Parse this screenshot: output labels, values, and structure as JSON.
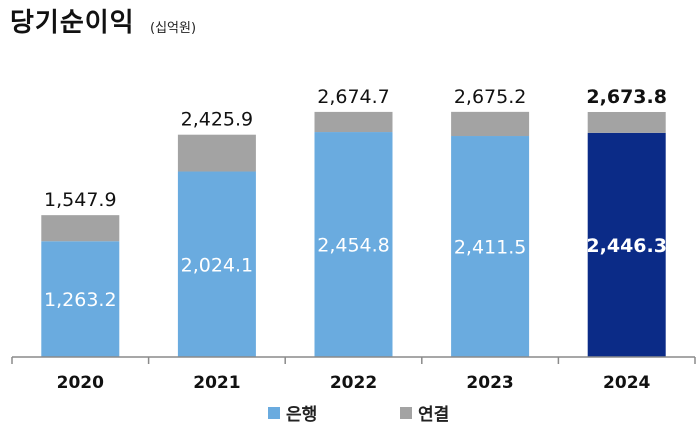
{
  "title": "당기순이익",
  "unit": "(십억원)",
  "chart_data": {
    "type": "bar",
    "stacked": true,
    "categories": [
      "2020",
      "2021",
      "2022",
      "2023",
      "2024"
    ],
    "series": [
      {
        "name": "은행",
        "values": [
          1263.2,
          2024.1,
          2454.8,
          2411.5,
          2446.3
        ],
        "labels": [
          "1,263.2",
          "2,024.1",
          "2,454.8",
          "2,411.5",
          "2,446.3"
        ]
      },
      {
        "name": "연결",
        "values": [
          284.7,
          401.8,
          219.9,
          263.7,
          227.5
        ]
      }
    ],
    "totals": [
      1547.9,
      2425.9,
      2674.7,
      2675.2,
      2673.8
    ],
    "total_labels": [
      "1,547.9",
      "2,425.9",
      "2,674.7",
      "2,675.2",
      "2,673.8"
    ],
    "highlight_category": "2024",
    "ylim": [
      0,
      2750
    ],
    "grid": false,
    "legend": "bottom-center",
    "colors": {
      "bank": "#6aabdf",
      "consolidated": "#a3a3a3",
      "highlight": "#0b2b87",
      "axis": "#8a8a8a"
    }
  }
}
